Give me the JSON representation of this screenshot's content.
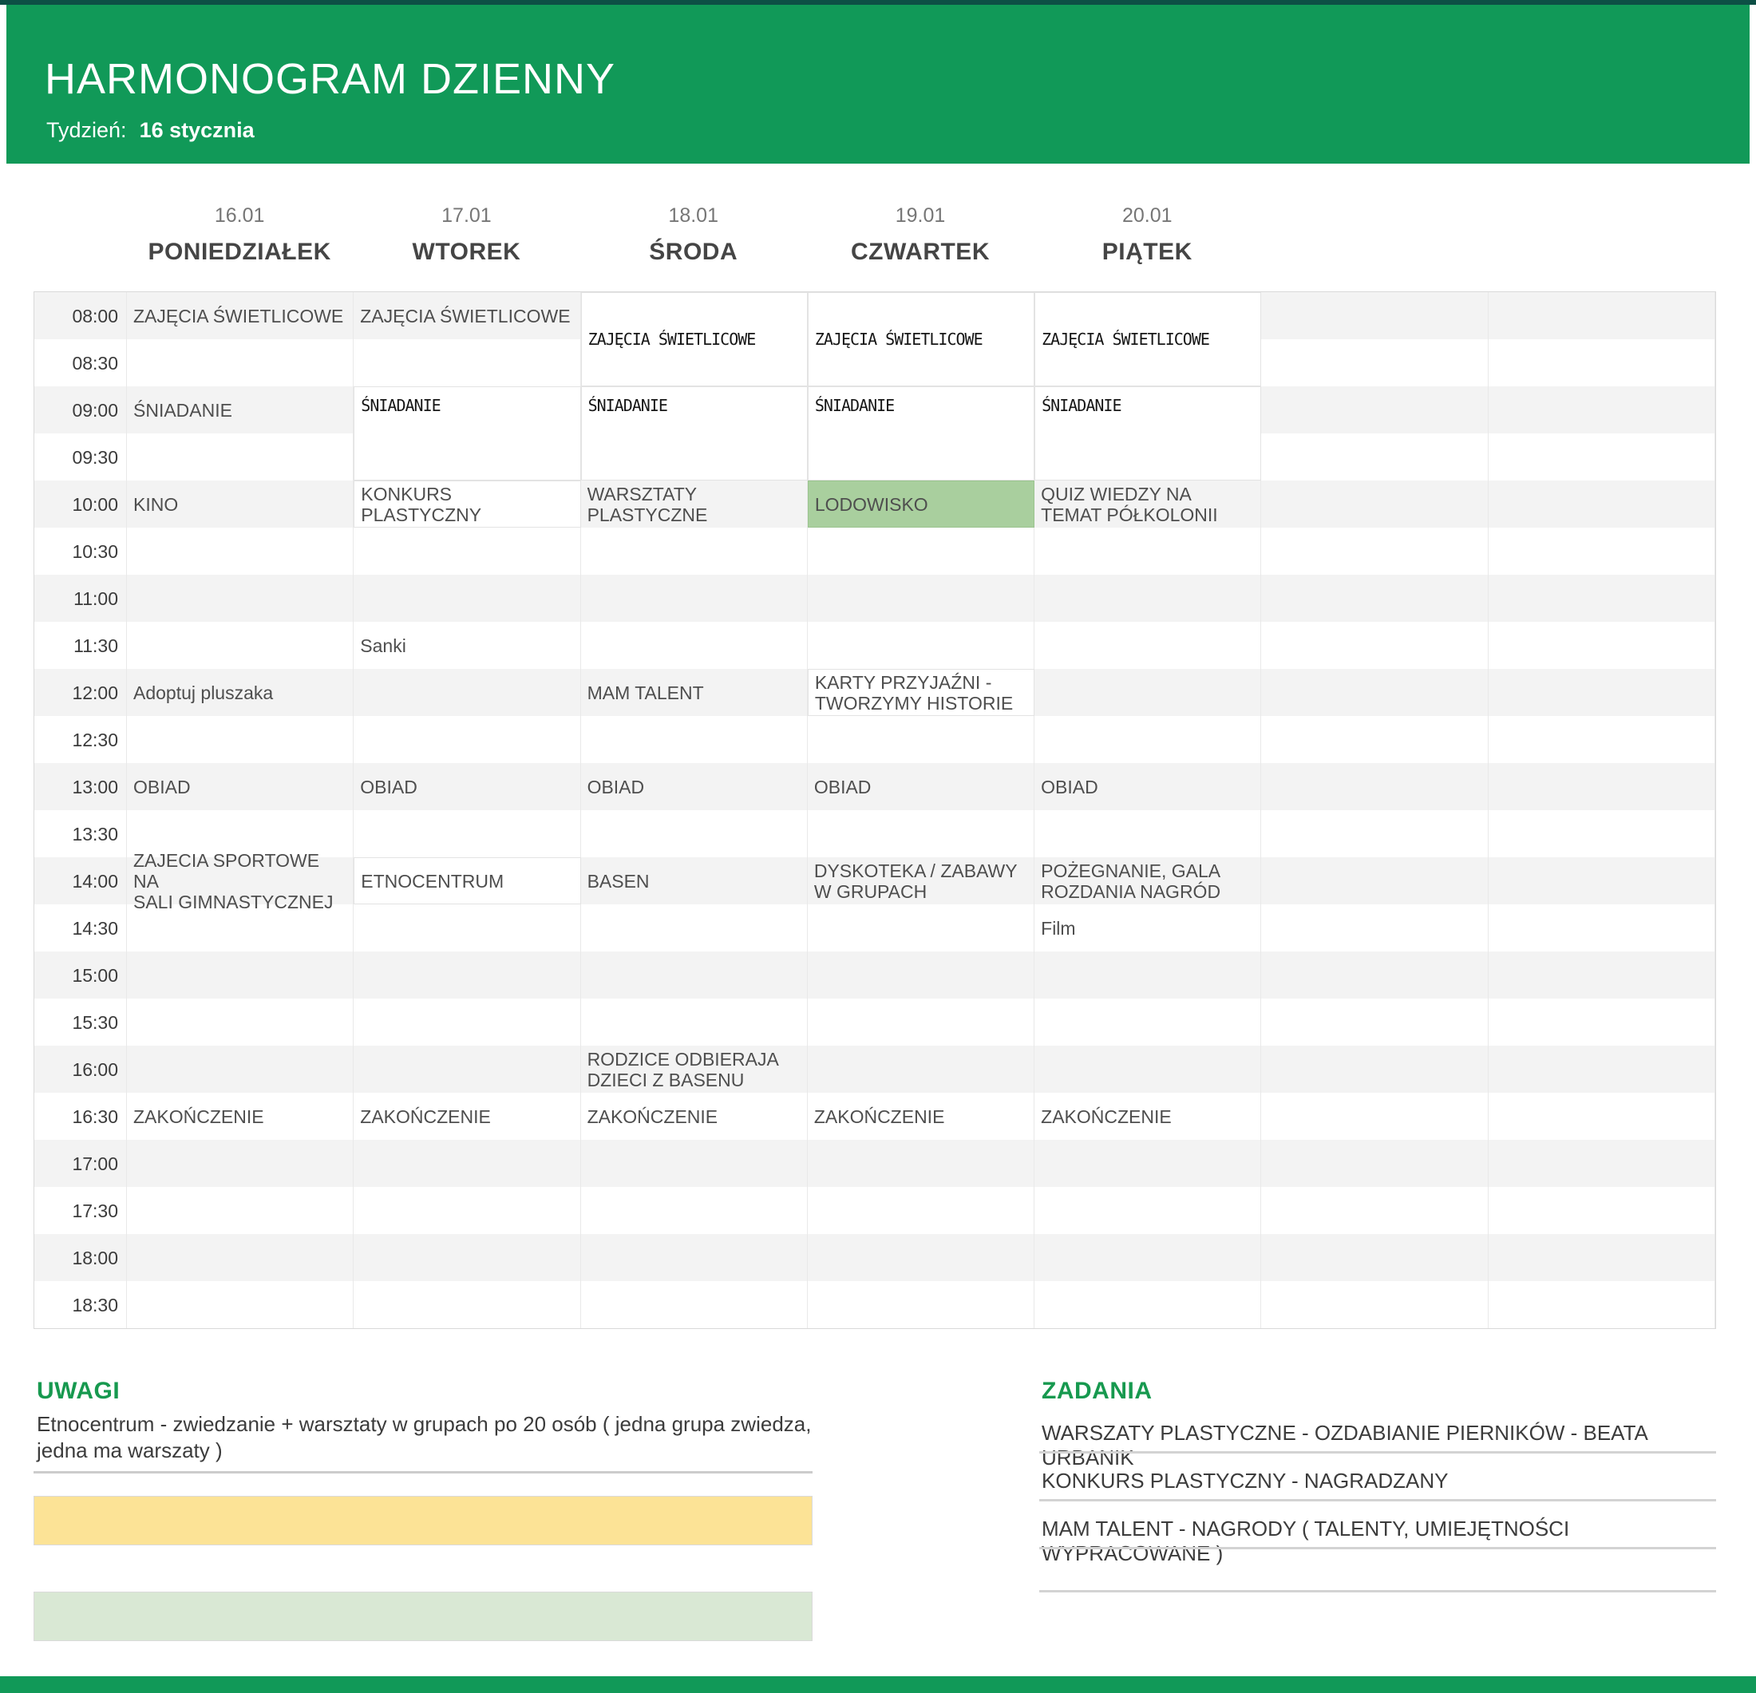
{
  "header": {
    "title": "HARMONOGRAM DZIENNY",
    "week_label": "Tydzień:",
    "week_value": "16 stycznia"
  },
  "days": [
    {
      "date": "16.01",
      "name": "PONIEDZIAŁEK"
    },
    {
      "date": "17.01",
      "name": "WTOREK"
    },
    {
      "date": "18.01",
      "name": "ŚRODA"
    },
    {
      "date": "19.01",
      "name": "CZWARTEK"
    },
    {
      "date": "20.01",
      "name": "PIĄTEK"
    }
  ],
  "times": [
    "08:00",
    "08:30",
    "09:00",
    "09:30",
    "10:00",
    "10:30",
    "11:00",
    "11:30",
    "12:00",
    "12:30",
    "13:00",
    "13:30",
    "14:00",
    "14:30",
    "15:00",
    "15:30",
    "16:00",
    "16:30",
    "17:00",
    "17:30",
    "18:00",
    "18:30"
  ],
  "events": [
    {
      "day": 0,
      "time": "08:00",
      "text": "ZAJĘCIA ŚWIETLICOWE"
    },
    {
      "day": 1,
      "time": "08:00",
      "text": "ZAJĘCIA ŚWIETLICOWE"
    },
    {
      "day": 2,
      "time": "08:00",
      "text": "ZAJĘCIA ŚWIETLICOWE",
      "mono": true,
      "bg": "white",
      "span": 2
    },
    {
      "day": 3,
      "time": "08:00",
      "text": "ZAJĘCIA ŚWIETLICOWE",
      "mono": true,
      "bg": "white",
      "span": 2
    },
    {
      "day": 4,
      "time": "08:00",
      "text": "ZAJĘCIA ŚWIETLICOWE",
      "mono": true,
      "bg": "white",
      "span": 2
    },
    {
      "day": 0,
      "time": "09:00",
      "text": "ŚNIADANIE"
    },
    {
      "day": 1,
      "time": "09:00",
      "text": "ŚNIADANIE",
      "mono": true,
      "bg": "white",
      "span": 2,
      "align": "top"
    },
    {
      "day": 2,
      "time": "09:00",
      "text": "ŚNIADANIE",
      "mono": true,
      "bg": "white",
      "span": 2,
      "align": "top"
    },
    {
      "day": 3,
      "time": "09:00",
      "text": "ŚNIADANIE",
      "mono": true,
      "bg": "white",
      "span": 2,
      "align": "top"
    },
    {
      "day": 4,
      "time": "09:00",
      "text": "ŚNIADANIE",
      "mono": true,
      "bg": "white",
      "span": 2,
      "align": "top"
    },
    {
      "day": 0,
      "time": "10:00",
      "text": "KINO"
    },
    {
      "day": 1,
      "time": "10:00",
      "text": "KONKURS PLASTYCZNY",
      "bg": "white"
    },
    {
      "day": 2,
      "time": "10:00",
      "text": "WARSZTATY\nPLASTYCZNE"
    },
    {
      "day": 3,
      "time": "10:00",
      "text": "LODOWISKO",
      "bg": "green"
    },
    {
      "day": 4,
      "time": "10:00",
      "text": "QUIZ WIEDZY NA\nTEMAT PÓŁKOLONII"
    },
    {
      "day": 1,
      "time": "11:30",
      "text": "Sanki"
    },
    {
      "day": 0,
      "time": "12:00",
      "text": "Adoptuj pluszaka"
    },
    {
      "day": 2,
      "time": "12:00",
      "text": "MAM TALENT"
    },
    {
      "day": 3,
      "time": "12:00",
      "text": "KARTY PRZYJAŹNI -\nTWORZYMY HISTORIE",
      "bg": "white"
    },
    {
      "day": 0,
      "time": "13:00",
      "text": "OBIAD"
    },
    {
      "day": 1,
      "time": "13:00",
      "text": "OBIAD"
    },
    {
      "day": 2,
      "time": "13:00",
      "text": "OBIAD"
    },
    {
      "day": 3,
      "time": "13:00",
      "text": "OBIAD"
    },
    {
      "day": 4,
      "time": "13:00",
      "text": "OBIAD"
    },
    {
      "day": 0,
      "time": "14:00",
      "text": "ZAJECIA SPORTOWE NA\nSALI GIMNASTYCZNEJ"
    },
    {
      "day": 1,
      "time": "14:00",
      "text": "ETNOCENTRUM",
      "bg": "white"
    },
    {
      "day": 2,
      "time": "14:00",
      "text": "BASEN"
    },
    {
      "day": 3,
      "time": "14:00",
      "text": "DYSKOTEKA / ZABAWY\nW GRUPACH"
    },
    {
      "day": 4,
      "time": "14:00",
      "text": "POŻEGNANIE, GALA\nROZDANIA NAGRÓD"
    },
    {
      "day": 4,
      "time": "14:30",
      "text": "Film"
    },
    {
      "day": 2,
      "time": "16:00",
      "text": "RODZICE ODBIERAJA\nDZIECI Z BASENU"
    },
    {
      "day": 0,
      "time": "16:30",
      "text": "ZAKOŃCZENIE"
    },
    {
      "day": 1,
      "time": "16:30",
      "text": "ZAKOŃCZENIE"
    },
    {
      "day": 2,
      "time": "16:30",
      "text": "ZAKOŃCZENIE"
    },
    {
      "day": 3,
      "time": "16:30",
      "text": "ZAKOŃCZENIE"
    },
    {
      "day": 4,
      "time": "16:30",
      "text": "ZAKOŃCZENIE"
    }
  ],
  "notes": {
    "heading": "UWAGI",
    "text": "Etnocentrum - zwiedzanie + warsztaty w grupach po 20 osób ( jedna grupa zwiedza,\njedna ma warszaty )"
  },
  "tasks": {
    "heading": "ZADANIA",
    "items": [
      "WARSZATY PLASTYCZNE - OZDABIANIE PIERNIKÓW - BEATA URBANIK",
      "KONKURS PLASTYCZNY - NAGRADZANY",
      "MAM TALENT - NAGRODY ( TALENTY, UMIEJĘTNOŚCI WYPRACOWANE )"
    ]
  },
  "colors": {
    "header_green": "#119958",
    "top_strip_dark": "#0d4f45",
    "highlight_cell_green": "#a9cf9e",
    "bar_yellow": "#fce396",
    "bar_light_green": "#d9e8d4",
    "section_heading_green": "#17994f",
    "row_stripe_gray": "#f3f3f3"
  }
}
